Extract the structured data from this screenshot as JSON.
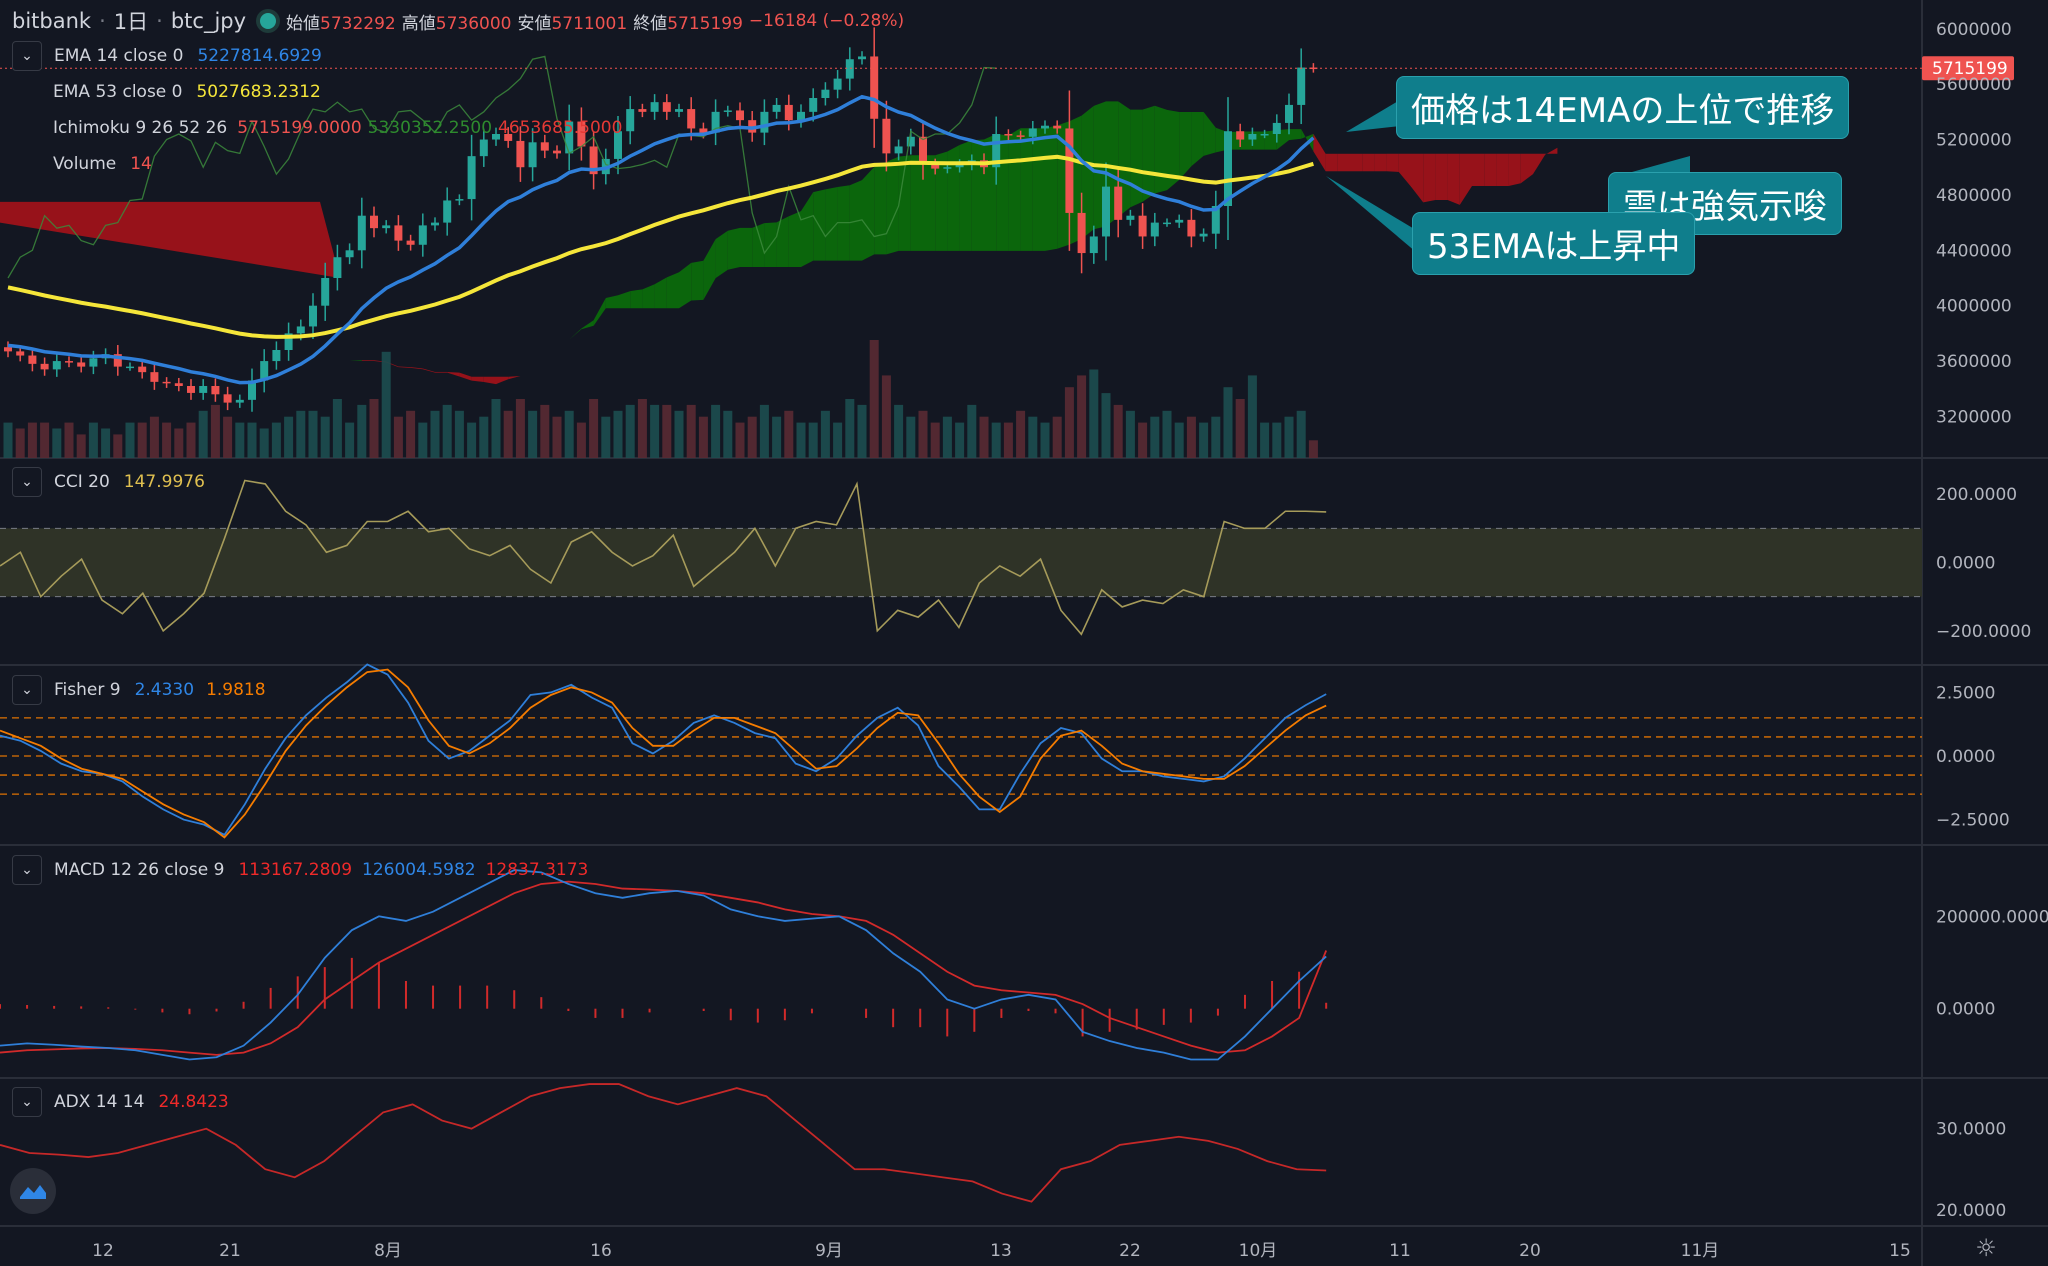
{
  "header": {
    "exchange": "bitbank",
    "interval": "1日",
    "symbol": "btc_jpy",
    "open_label": "始値",
    "open": "5732292",
    "high_label": "高値",
    "high": "5736000",
    "low_label": "安値",
    "low": "5711001",
    "close_label": "終値",
    "close": "5715199",
    "change": "−16184 (−0.28%)"
  },
  "legends": {
    "ema14": {
      "name": "EMA 14 close 0",
      "value": "5227814.6929"
    },
    "ema53": {
      "name": "EMA 53 close 0",
      "value": "5027683.2312"
    },
    "ichimoku": {
      "name": "Ichimoku 9 26 52 26",
      "v1": "5715199.0000",
      "v2": "5330352.2500",
      "v3": "4653685.5000"
    },
    "volume": {
      "name": "Volume",
      "value": "14"
    },
    "cci": {
      "name": "CCI 20",
      "value": "147.9976"
    },
    "fisher": {
      "name": "Fisher 9",
      "v1": "2.4330",
      "v2": "1.9818"
    },
    "macd": {
      "name": "MACD 12 26 close 9",
      "v1": "113167.2809",
      "v2": "126004.5982",
      "v3": "12837.3173"
    },
    "adx": {
      "name": "ADX 14 14",
      "value": "24.8423"
    }
  },
  "last_price_label": "5715199",
  "callouts": {
    "c1": "価格は14EMAの上位で推移",
    "c2": "雲は強気示唆",
    "c3": "53EMAは上昇中"
  },
  "colors": {
    "up": "#26a69a",
    "down": "#ef5350",
    "ema14": "#2f7fd9",
    "ema53": "#f5e63a",
    "cloud_bull": "#0b6e0b",
    "cloud_bear": "#a3121a",
    "cci": "#a69b5a",
    "fisher_main": "#2f7fd9",
    "fisher_signal": "#f57c00",
    "macd": "#2f7fd9",
    "macd_signal": "#d12a2a",
    "adx": "#c62828",
    "callout": "#0f7e8c"
  },
  "x_axis_labels": [
    "12",
    "21",
    "8月",
    "16",
    "9月",
    "13",
    "22",
    "10月",
    "11",
    "20",
    "11月",
    "15"
  ],
  "chart_data": [
    {
      "type": "candlestick",
      "pane": "price",
      "ylim": [
        2900000,
        6150000
      ],
      "y_ticks": [
        "6000000",
        "5600000",
        "5200000",
        "4800000",
        "4400000",
        "4000000",
        "3600000",
        "3200000"
      ],
      "y_tick_values": [
        6000000,
        5600000,
        5200000,
        4800000,
        4400000,
        4000000,
        3600000,
        3200000
      ],
      "last_price": 5715199,
      "closes": [
        3670000,
        3640000,
        3580000,
        3540000,
        3600000,
        3590000,
        3560000,
        3620000,
        3650000,
        3560000,
        3560000,
        3520000,
        3450000,
        3440000,
        3420000,
        3370000,
        3420000,
        3360000,
        3300000,
        3320000,
        3460000,
        3600000,
        3680000,
        3800000,
        3850000,
        4000000,
        4200000,
        4350000,
        4400000,
        4650000,
        4560000,
        4580000,
        4470000,
        4440000,
        4580000,
        4600000,
        4760000,
        4770000,
        5080000,
        5200000,
        5240000,
        5190000,
        5000000,
        5180000,
        5120000,
        5100000,
        5330000,
        5150000,
        4950000,
        5060000,
        5260000,
        5420000,
        5400000,
        5470000,
        5400000,
        5420000,
        5280000,
        5250000,
        5400000,
        5410000,
        5340000,
        5250000,
        5400000,
        5450000,
        5340000,
        5400000,
        5500000,
        5560000,
        5640000,
        5780000,
        5800000,
        5350000,
        5100000,
        5150000,
        5220000,
        5020000,
        4990000,
        5000000,
        5020000,
        5050000,
        5000000,
        5240000,
        5230000,
        5220000,
        5280000,
        5300000,
        5280000,
        4670000,
        4380000,
        4500000,
        4860000,
        4620000,
        4650000,
        4500000,
        4600000,
        4600000,
        4620000,
        4500000,
        4520000,
        4720000,
        5260000,
        5200000,
        5240000,
        5240000,
        5320000,
        5450000,
        5720000,
        5715199
      ],
      "volume_relative": [
        0.3,
        0.25,
        0.3,
        0.3,
        0.25,
        0.3,
        0.2,
        0.3,
        0.25,
        0.2,
        0.3,
        0.3,
        0.35,
        0.3,
        0.25,
        0.3,
        0.4,
        0.45,
        0.35,
        0.3,
        0.3,
        0.25,
        0.3,
        0.35,
        0.4,
        0.4,
        0.35,
        0.5,
        0.3,
        0.45,
        0.5,
        0.9,
        0.35,
        0.4,
        0.3,
        0.4,
        0.45,
        0.4,
        0.3,
        0.35,
        0.5,
        0.4,
        0.5,
        0.4,
        0.45,
        0.35,
        0.4,
        0.3,
        0.5,
        0.35,
        0.4,
        0.45,
        0.5,
        0.45,
        0.45,
        0.4,
        0.45,
        0.35,
        0.45,
        0.4,
        0.3,
        0.35,
        0.45,
        0.35,
        0.4,
        0.3,
        0.3,
        0.4,
        0.3,
        0.5,
        0.45,
        1.0,
        0.7,
        0.45,
        0.35,
        0.4,
        0.3,
        0.35,
        0.3,
        0.45,
        0.35,
        0.3,
        0.3,
        0.4,
        0.35,
        0.3,
        0.35,
        0.6,
        0.7,
        0.75,
        0.55,
        0.45,
        0.4,
        0.3,
        0.35,
        0.4,
        0.3,
        0.35,
        0.3,
        0.35,
        0.6,
        0.5,
        0.7,
        0.3,
        0.3,
        0.35,
        0.4,
        0.15
      ]
    },
    {
      "type": "line",
      "pane": "cci",
      "name": "CCI 20",
      "ylim": [
        -300,
        300
      ],
      "y_ticks": [
        "200.0000",
        "0.0000",
        "−200.0000"
      ],
      "y_tick_values": [
        200,
        0,
        -200
      ],
      "band": [
        100,
        -100
      ],
      "values": [
        -10,
        30,
        -100,
        -40,
        10,
        -110,
        -150,
        -90,
        -200,
        -150,
        -90,
        70,
        240,
        230,
        150,
        110,
        30,
        50,
        120,
        120,
        150,
        90,
        100,
        40,
        20,
        50,
        -20,
        -60,
        60,
        90,
        30,
        -10,
        20,
        80,
        -70,
        -20,
        30,
        100,
        -10,
        100,
        120,
        110,
        230,
        -200,
        -140,
        -160,
        -110,
        -190,
        -60,
        -10,
        -40,
        10,
        -140,
        -210,
        -80,
        -130,
        -110,
        -120,
        -80,
        -100,
        120,
        100,
        100,
        150,
        150,
        147.9976
      ],
      "x_fraction_end": 0.69
    },
    {
      "type": "line",
      "pane": "fisher",
      "name": "Fisher 9",
      "ylim": [
        -3.5,
        3.5
      ],
      "y_ticks": [
        "2.5000",
        "0.0000",
        "−2.5000"
      ],
      "y_tick_values": [
        2.5,
        0,
        -2.5
      ],
      "levels": [
        1.5,
        0.75,
        0,
        -0.75,
        -1.5
      ],
      "series": [
        {
          "name": "",
          "values": [
            0.8,
            0.6,
            0.2,
            -0.3,
            -0.6,
            -0.7,
            -1,
            -1.6,
            -2.1,
            -2.5,
            -2.7,
            -3.1,
            -1.9,
            -0.5,
            0.7,
            1.6,
            2.3,
            2.9,
            3.6,
            3.2,
            2.1,
            0.6,
            -0.1,
            0.2,
            0.8,
            1.4,
            2.4,
            2.5,
            2.8,
            2.3,
            1.9,
            0.5,
            0.1,
            0.6,
            1.3,
            1.6,
            1.3,
            0.9,
            0.7,
            -0.3,
            -0.6,
            -0.1,
            0.8,
            1.5,
            1.9,
            1.2,
            -0.4,
            -1.2,
            -2.1,
            -2.1,
            -0.7,
            0.5,
            1.1,
            0.9,
            -0.1,
            -0.6,
            -0.6,
            -0.8,
            -0.9,
            -1,
            -0.8,
            -0.1,
            0.7,
            1.5,
            2.0,
            2.433
          ]
        },
        {
          "name": "",
          "values": [
            1.0,
            0.7,
            0.4,
            -0.1,
            -0.5,
            -0.7,
            -0.9,
            -1.4,
            -1.9,
            -2.3,
            -2.6,
            -3.2,
            -2.3,
            -1.1,
            0.2,
            1.2,
            2,
            2.7,
            3.3,
            3.4,
            2.7,
            1.4,
            0.4,
            0.1,
            0.5,
            1.1,
            1.9,
            2.4,
            2.7,
            2.5,
            2.1,
            1.1,
            0.4,
            0.4,
            1.0,
            1.5,
            1.5,
            1.2,
            0.9,
            0.2,
            -0.5,
            -0.4,
            0.3,
            1.1,
            1.7,
            1.6,
            0.5,
            -0.7,
            -1.6,
            -2.2,
            -1.6,
            -0.1,
            0.8,
            1.0,
            0.4,
            -0.3,
            -0.6,
            -0.7,
            -0.8,
            -0.9,
            -0.9,
            -0.4,
            0.3,
            1.0,
            1.6,
            1.9818
          ]
        }
      ],
      "x_fraction_end": 0.69
    },
    {
      "type": "line",
      "pane": "macd",
      "name": "MACD 12 26 close 9",
      "ylim": [
        -150000,
        350000
      ],
      "y_ticks": [
        "200000.0000",
        "0.0000"
      ],
      "y_tick_values": [
        200000,
        0
      ],
      "series": [
        {
          "name": "",
          "values": [
            -80000,
            -75000,
            -78000,
            -82000,
            -85000,
            -90000,
            -100000,
            -110000,
            -105000,
            -80000,
            -30000,
            30000,
            110000,
            170000,
            200000,
            190000,
            210000,
            240000,
            270000,
            300000,
            295000,
            270000,
            250000,
            240000,
            250000,
            255000,
            245000,
            215000,
            200000,
            190000,
            195000,
            200000,
            170000,
            120000,
            80000,
            20000,
            0,
            20000,
            30000,
            20000,
            -50000,
            -70000,
            -85000,
            -95000,
            -110000,
            -110000,
            -60000,
            0,
            60000,
            113167.2809
          ]
        },
        {
          "name": "",
          "values": [
            -95000,
            -90000,
            -88000,
            -86000,
            -85000,
            -87000,
            -90000,
            -95000,
            -100000,
            -95000,
            -75000,
            -40000,
            20000,
            60000,
            100000,
            130000,
            160000,
            190000,
            220000,
            250000,
            270000,
            275000,
            270000,
            260000,
            258000,
            255000,
            250000,
            240000,
            230000,
            215000,
            205000,
            200000,
            190000,
            160000,
            120000,
            80000,
            50000,
            40000,
            35000,
            30000,
            10000,
            -20000,
            -40000,
            -60000,
            -80000,
            -95000,
            -90000,
            -60000,
            -20000,
            126004.5982
          ]
        },
        {
          "name": "",
          "values": [
            10000,
            8000,
            6000,
            5000,
            3000,
            -2000,
            -8000,
            -12000,
            -6000,
            15000,
            45000,
            70000,
            90000,
            110000,
            100000,
            60000,
            50000,
            50000,
            50000,
            40000,
            25000,
            -5000,
            -20000,
            -20000,
            -8000,
            0,
            -5000,
            -25000,
            -30000,
            -25000,
            -10000,
            0,
            -20000,
            -40000,
            -40000,
            -60000,
            -50000,
            -20000,
            -5000,
            -10000,
            -60000,
            -50000,
            -45000,
            -35000,
            -30000,
            -15000,
            30000,
            60000,
            80000,
            12837.3173
          ]
        }
      ],
      "x_fraction_end": 0.69
    },
    {
      "type": "line",
      "pane": "adx",
      "name": "ADX 14 14",
      "ylim": [
        18,
        36
      ],
      "y_ticks": [
        "30.0000",
        "20.0000"
      ],
      "y_tick_values": [
        30,
        20
      ],
      "values": [
        28,
        27,
        26.8,
        26.5,
        27,
        28,
        29,
        30,
        28,
        25,
        24,
        26,
        29,
        32,
        33,
        31,
        30,
        32,
        34,
        35,
        35.5,
        35.5,
        34,
        33,
        34,
        35,
        34,
        31,
        28,
        25,
        25,
        24.5,
        24,
        23.5,
        22,
        21,
        25,
        26,
        28,
        28.5,
        29,
        28.5,
        27.5,
        26,
        25,
        24.8423
      ],
      "x_fraction_end": 0.69
    }
  ]
}
